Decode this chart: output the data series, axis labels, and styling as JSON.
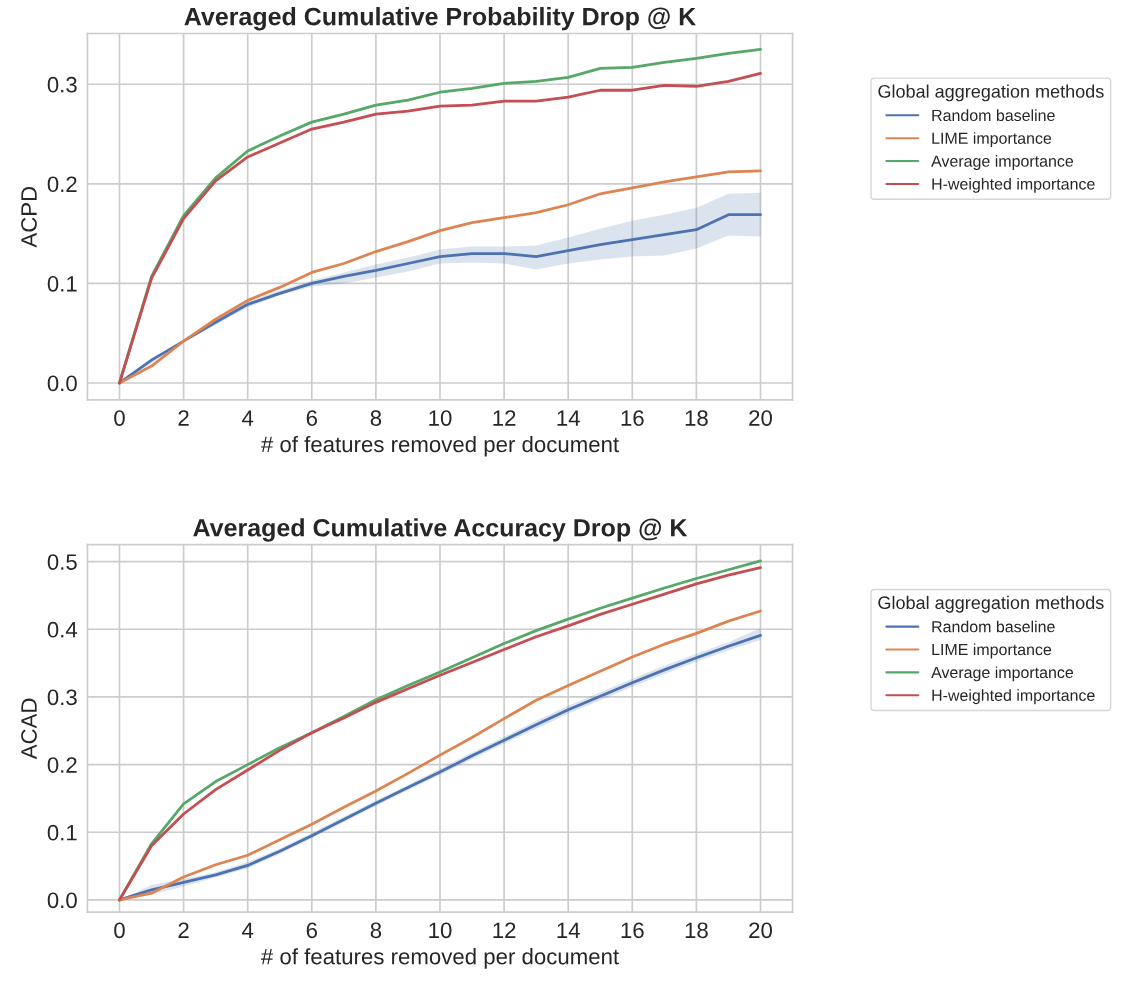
{
  "chart_data": [
    {
      "type": "line",
      "title": "Averaged Cumulative Probability Drop @ K",
      "xlabel": "# of features removed per document",
      "ylabel": "ACPD",
      "legend_title": "Global aggregation methods",
      "legend": "right",
      "grid": true,
      "x": [
        0,
        1,
        2,
        3,
        4,
        5,
        6,
        7,
        8,
        9,
        10,
        11,
        12,
        13,
        14,
        15,
        16,
        17,
        18,
        19,
        20
      ],
      "xlim": [
        -1,
        21
      ],
      "xticks": [
        0,
        2,
        4,
        6,
        8,
        10,
        12,
        14,
        16,
        18,
        20
      ],
      "ylim": [
        -0.017,
        0.351
      ],
      "yticks": [
        {
          "value": 0,
          "label": "0.0"
        },
        0.1,
        0.2,
        0.3
      ],
      "series": [
        {
          "name": "Random baseline",
          "color": "#4c72b0",
          "values": [
            0,
            0.023,
            0.042,
            0.061,
            0.079,
            0.09,
            0.1,
            0.107,
            0.113,
            0.12,
            0.127,
            0.13,
            0.13,
            0.127,
            0.133,
            0.139,
            0.144,
            0.149,
            0.154,
            0.169,
            0.169
          ],
          "lower": [
            0,
            0.02,
            0.042,
            0.058,
            0.076,
            0.088,
            0.097,
            0.1,
            0.106,
            0.112,
            0.12,
            0.121,
            0.12,
            0.114,
            0.12,
            0.124,
            0.127,
            0.128,
            0.135,
            0.148,
            0.147
          ],
          "upper": [
            0,
            0.025,
            0.043,
            0.063,
            0.082,
            0.093,
            0.103,
            0.111,
            0.119,
            0.126,
            0.134,
            0.137,
            0.137,
            0.138,
            0.146,
            0.155,
            0.163,
            0.169,
            0.176,
            0.19,
            0.191
          ]
        },
        {
          "name": "LIME importance",
          "color": "#dd8452",
          "values": [
            0,
            0.017,
            0.042,
            0.064,
            0.083,
            0.096,
            0.111,
            0.12,
            0.132,
            0.142,
            0.153,
            0.161,
            0.166,
            0.171,
            0.179,
            0.19,
            0.196,
            0.202,
            0.207,
            0.212,
            0.213
          ]
        },
        {
          "name": "Average importance",
          "color": "#55a868",
          "values": [
            0,
            0.107,
            0.168,
            0.206,
            0.233,
            0.248,
            0.262,
            0.27,
            0.279,
            0.284,
            0.292,
            0.296,
            0.301,
            0.303,
            0.307,
            0.316,
            0.317,
            0.322,
            0.326,
            0.331,
            0.335
          ]
        },
        {
          "name": "H-weighted importance",
          "color": "#c44e52",
          "values": [
            0,
            0.105,
            0.165,
            0.203,
            0.227,
            0.241,
            0.255,
            0.262,
            0.27,
            0.273,
            0.278,
            0.279,
            0.283,
            0.283,
            0.287,
            0.294,
            0.294,
            0.299,
            0.298,
            0.303,
            0.311
          ]
        }
      ]
    },
    {
      "type": "line",
      "title": "Averaged Cumulative Accuracy Drop @ K",
      "xlabel": "# of features removed per document",
      "ylabel": "ACAD",
      "legend_title": "Global aggregation methods",
      "legend": "right",
      "grid": true,
      "x": [
        0,
        1,
        2,
        3,
        4,
        5,
        6,
        7,
        8,
        9,
        10,
        11,
        12,
        13,
        14,
        15,
        16,
        17,
        18,
        19,
        20
      ],
      "xlim": [
        -1,
        21
      ],
      "xticks": [
        0,
        2,
        4,
        6,
        8,
        10,
        12,
        14,
        16,
        18,
        20
      ],
      "ylim": [
        -0.018,
        0.525
      ],
      "yticks": [
        {
          "value": 0,
          "label": "0.0"
        },
        0.1,
        0.2,
        0.3,
        0.4,
        0.5
      ],
      "series": [
        {
          "name": "Random baseline",
          "color": "#4c72b0",
          "values": [
            0,
            0.015,
            0.026,
            0.037,
            0.051,
            0.072,
            0.095,
            0.119,
            0.143,
            0.166,
            0.189,
            0.213,
            0.236,
            0.259,
            0.281,
            0.301,
            0.321,
            0.34,
            0.358,
            0.375,
            0.391
          ],
          "lower": [
            0,
            0.008,
            0.02,
            0.033,
            0.047,
            0.068,
            0.091,
            0.115,
            0.139,
            0.162,
            0.185,
            0.208,
            0.231,
            0.253,
            0.275,
            0.295,
            0.315,
            0.334,
            0.352,
            0.369,
            0.384
          ],
          "upper": [
            0,
            0.022,
            0.031,
            0.041,
            0.056,
            0.076,
            0.099,
            0.123,
            0.147,
            0.17,
            0.194,
            0.218,
            0.241,
            0.265,
            0.287,
            0.307,
            0.327,
            0.346,
            0.364,
            0.381,
            0.402
          ]
        },
        {
          "name": "LIME importance",
          "color": "#dd8452",
          "values": [
            0,
            0.01,
            0.034,
            0.052,
            0.066,
            0.089,
            0.112,
            0.137,
            0.161,
            0.187,
            0.214,
            0.24,
            0.268,
            0.295,
            0.317,
            0.338,
            0.359,
            0.378,
            0.394,
            0.412,
            0.427
          ]
        },
        {
          "name": "Average importance",
          "color": "#55a868",
          "values": [
            0,
            0.083,
            0.142,
            0.175,
            0.2,
            0.225,
            0.247,
            0.271,
            0.296,
            0.317,
            0.337,
            0.358,
            0.379,
            0.398,
            0.415,
            0.431,
            0.446,
            0.461,
            0.475,
            0.488,
            0.501
          ]
        },
        {
          "name": "H-weighted importance",
          "color": "#c44e52",
          "values": [
            0,
            0.08,
            0.127,
            0.163,
            0.192,
            0.221,
            0.247,
            0.269,
            0.292,
            0.312,
            0.332,
            0.351,
            0.37,
            0.389,
            0.405,
            0.422,
            0.437,
            0.452,
            0.467,
            0.48,
            0.491
          ]
        }
      ]
    }
  ]
}
